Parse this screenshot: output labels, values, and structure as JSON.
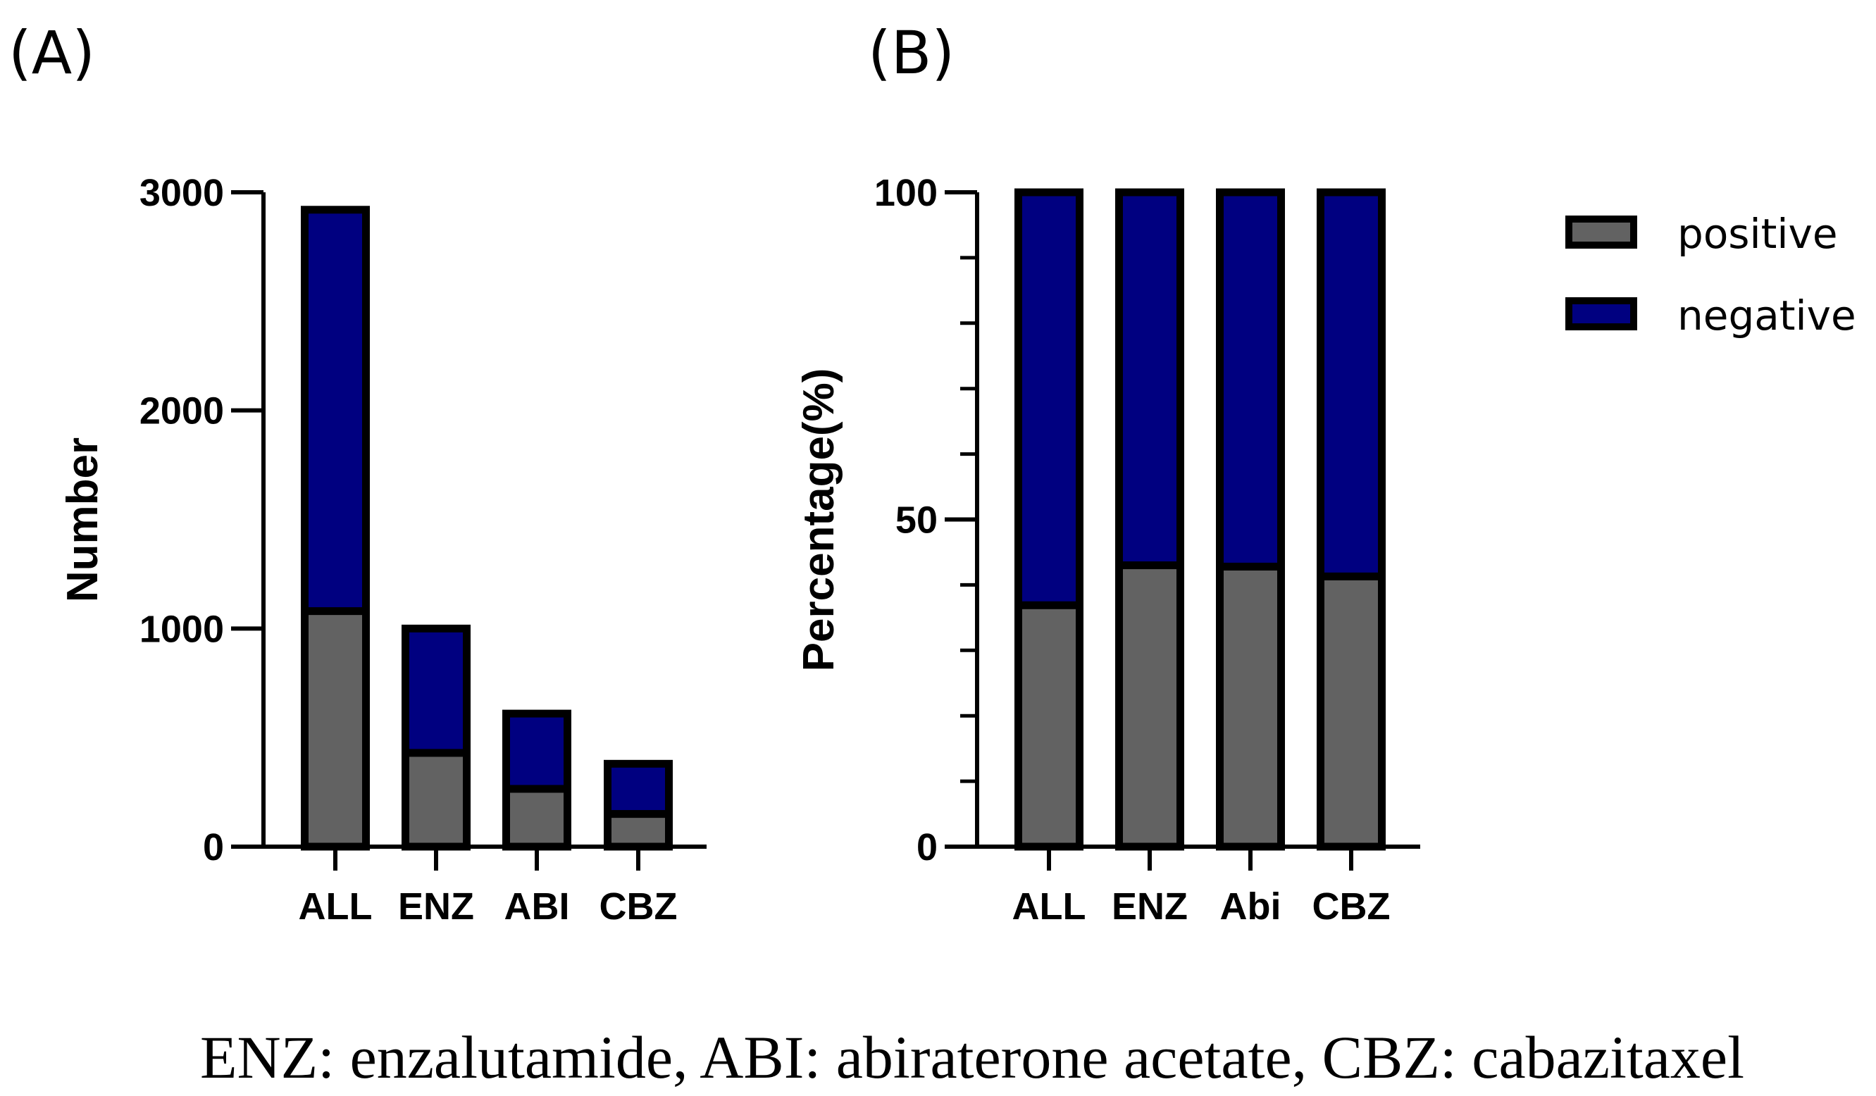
{
  "panels": {
    "a_label": "(A)",
    "b_label": "(B)"
  },
  "legend": {
    "positive": "positive",
    "negative": "negative"
  },
  "colors": {
    "positive": "#626262",
    "negative": "#000080",
    "outline": "#000000"
  },
  "footnote": "ENZ: enzalutamide, ABI: abiraterone acetate, CBZ: cabazitaxel",
  "chart_data": [
    {
      "type": "bar",
      "stacked": true,
      "title": "",
      "xlabel": "",
      "ylabel": "Number",
      "categories": [
        "ALL",
        "ENZ",
        "ABI",
        "CBZ"
      ],
      "series": [
        {
          "name": "positive",
          "values": [
            1080,
            430,
            265,
            150
          ]
        },
        {
          "name": "negative",
          "values": [
            1840,
            570,
            345,
            230
          ]
        }
      ],
      "ylim": [
        0,
        3000
      ],
      "yticks": [
        0,
        1000,
        2000,
        3000
      ],
      "ytick_labels": [
        "0",
        "1000",
        "2000",
        "3000"
      ]
    },
    {
      "type": "bar",
      "stacked": true,
      "title": "",
      "xlabel": "",
      "ylabel": "Percentage(%)",
      "categories": [
        "ALL",
        "ENZ",
        "Abi",
        "CBZ"
      ],
      "series": [
        {
          "name": "positive",
          "values": [
            36.9,
            43.0,
            42.8,
            41.3
          ]
        },
        {
          "name": "negative",
          "values": [
            63.1,
            57.0,
            57.2,
            58.7
          ]
        }
      ],
      "ylim": [
        0,
        100
      ],
      "yticks": [
        0,
        50,
        100
      ],
      "ytick_labels": [
        "0",
        "50",
        "100"
      ],
      "minor_tick_step": 10,
      "legend": "right"
    }
  ]
}
